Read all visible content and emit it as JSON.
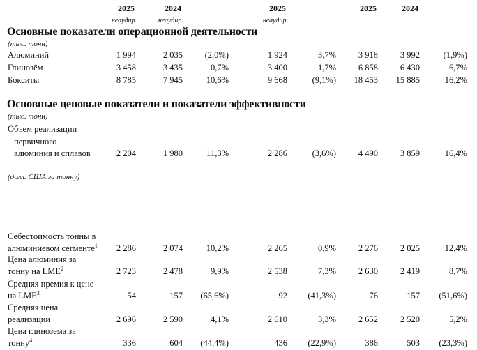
{
  "header": {
    "years": [
      "2025",
      "2024",
      "2025",
      "2025",
      "2024"
    ],
    "audit_notes": [
      "неаудир.",
      "неаудир.",
      "неаудир."
    ]
  },
  "sections": [
    {
      "title": "Основные показатели операционной деятельности",
      "unit": "(тыс. тонн)",
      "rows": [
        {
          "label": "Алюминий",
          "values": [
            "1 994",
            "2 035",
            "(2,0%)",
            "1 924",
            "3,7%",
            "3 918",
            "3 992",
            "(1,9%)"
          ]
        },
        {
          "label": "Глинозём",
          "values": [
            "3 458",
            "3 435",
            "0,7%",
            "3 400",
            "1,7%",
            "6 858",
            "6 430",
            "6,7%"
          ]
        },
        {
          "label": "Бокситы",
          "values": [
            "8 785",
            "7 945",
            "10,6%",
            "9 668",
            "(9,1%)",
            "18 453",
            "15 885",
            "16,2%"
          ]
        }
      ]
    },
    {
      "title": "Основные ценовые показатели и показатели эффективности",
      "unit": "(тыс. тонн)",
      "rows": [
        {
          "label_lines": [
            "Объем реализации",
            "первичного",
            "алюминия и сплавов"
          ],
          "values": [
            "2 204",
            "1 980",
            "11,3%",
            "2 286",
            "(3,6%)",
            "4 490",
            "3 859",
            "16,4%"
          ]
        }
      ],
      "unit2": "(долл. США за тонну)",
      "rows2": [
        {
          "label_lines": [
            "Себестоимость тонны в",
            "алюминиевом сегменте"
          ],
          "footnote": "1",
          "values": [
            "2 286",
            "2 074",
            "10,2%",
            "2 265",
            "0,9%",
            "2 276",
            "2 025",
            "12,4%"
          ]
        },
        {
          "label_lines": [
            "Цена алюминия за",
            "тонну на LME"
          ],
          "footnote": "2",
          "values": [
            "2 723",
            "2 478",
            "9,9%",
            "2 538",
            "7,3%",
            "2 630",
            "2 419",
            "8,7%"
          ]
        },
        {
          "label_lines": [
            "Средняя премия к цене",
            "на LME"
          ],
          "footnote": "3",
          "values": [
            "54",
            "157",
            "(65,6%)",
            "92",
            "(41,3%)",
            "76",
            "157",
            "(51,6%)"
          ]
        },
        {
          "label_lines": [
            "Средняя цена",
            "реализации"
          ],
          "footnote": "",
          "values": [
            "2 696",
            "2 590",
            "4,1%",
            "2 610",
            "3,3%",
            "2 652",
            "2 520",
            "5,2%"
          ]
        },
        {
          "label_lines": [
            "Цена глинозема за",
            "тонну"
          ],
          "footnote": "4",
          "values": [
            "336",
            "604",
            "(44,4%)",
            "436",
            "(22,9%)",
            "386",
            "503",
            "(23,3%)"
          ]
        }
      ]
    }
  ]
}
